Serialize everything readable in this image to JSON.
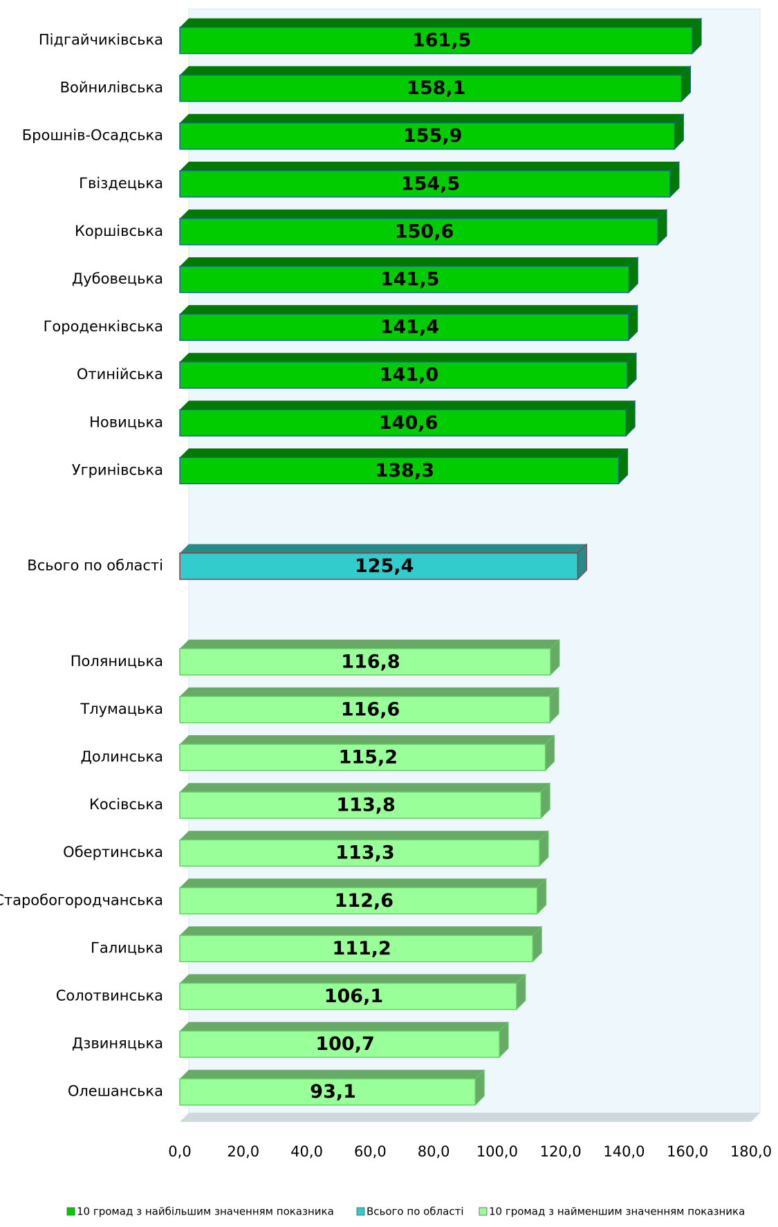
{
  "chart_data": {
    "type": "bar",
    "orientation": "horizontal",
    "categories": [
      "Підгайчиківська",
      "Войнилівська",
      "Брошнів-Осадська",
      "Гвіздецька",
      "Коршівська",
      "Дубовецька",
      "Городенківська",
      "Отинійська",
      "Новицька",
      "Угринівська",
      "Всього по області",
      "Поляницька",
      "Тлумацька",
      "Долинська",
      "Косівська",
      "Обертинська",
      "Старобогородчанська",
      "Галицька",
      "Солотвинська",
      "Дзвиняцька",
      "Олешанська"
    ],
    "series": [
      {
        "name": "10 громад з найбільшим значенням показника",
        "color": "#00cc00",
        "side_color": "#007a00",
        "values": [
          161.5,
          158.1,
          155.9,
          154.5,
          150.6,
          141.5,
          141.4,
          141.0,
          140.6,
          138.3,
          null,
          null,
          null,
          null,
          null,
          null,
          null,
          null,
          null,
          null,
          null
        ],
        "value_labels": [
          "161,5",
          "158,1",
          "155,9",
          "154,5",
          "150,6",
          "141,5",
          "141,4",
          "141,0",
          "140,6",
          "138,3",
          null,
          null,
          null,
          null,
          null,
          null,
          null,
          null,
          null,
          null,
          null
        ]
      },
      {
        "name": "Всього по області",
        "color": "#33cccc",
        "side_color": "#2a8a8a",
        "values": [
          null,
          null,
          null,
          null,
          null,
          null,
          null,
          null,
          null,
          null,
          125.4,
          null,
          null,
          null,
          null,
          null,
          null,
          null,
          null,
          null,
          null
        ],
        "value_labels": [
          null,
          null,
          null,
          null,
          null,
          null,
          null,
          null,
          null,
          null,
          "125,4",
          null,
          null,
          null,
          null,
          null,
          null,
          null,
          null,
          null,
          null
        ]
      },
      {
        "name": "10 громад з найменшим значенням показника",
        "color": "#99ff99",
        "side_color": "#66aa66",
        "values": [
          null,
          null,
          null,
          null,
          null,
          null,
          null,
          null,
          null,
          null,
          null,
          116.8,
          116.6,
          115.2,
          113.8,
          113.3,
          112.6,
          111.2,
          106.1,
          100.7,
          93.1
        ],
        "value_labels": [
          null,
          null,
          null,
          null,
          null,
          null,
          null,
          null,
          null,
          null,
          null,
          "116,8",
          "116,6",
          "115,2",
          "113,8",
          "113,3",
          "112,6",
          "111,2",
          "106,1",
          "100,7",
          "93,1"
        ]
      }
    ],
    "xlim": [
      0,
      180
    ],
    "xticks": [
      {
        "value": 0,
        "label": "0,0"
      },
      {
        "value": 20,
        "label": "20,0"
      },
      {
        "value": 40,
        "label": "40,0"
      },
      {
        "value": 60,
        "label": "60,0"
      },
      {
        "value": 80,
        "label": "80,0"
      },
      {
        "value": 100,
        "label": "100,0"
      },
      {
        "value": 120,
        "label": "120,0"
      },
      {
        "value": 140,
        "label": "140,0"
      },
      {
        "value": 160,
        "label": "160,0"
      },
      {
        "value": 180,
        "label": "180,0"
      }
    ],
    "legend": "bottom"
  }
}
